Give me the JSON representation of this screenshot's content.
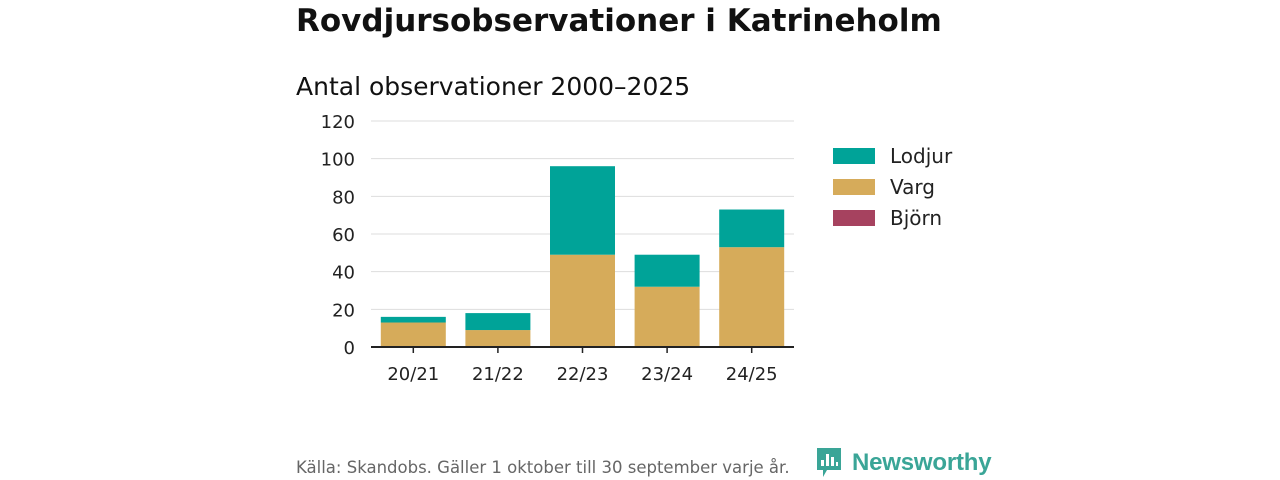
{
  "header": {
    "title": "Rovdjursobservationer i Katrineholm",
    "subtitle": "Antal observationer 2000–2025"
  },
  "footer": {
    "source": "Källa: Skandobs. Gäller 1 oktober till 30 september varje år.",
    "logo_text": "Newsworthy",
    "logo_icon": "bar-chart-icon",
    "logo_color": "#3aa597"
  },
  "chart_data": {
    "type": "bar",
    "stacked": true,
    "title": "Antal observationer 2000–2025",
    "xlabel": "",
    "ylabel": "",
    "categories": [
      "20/21",
      "21/22",
      "22/23",
      "23/24",
      "24/25"
    ],
    "series": [
      {
        "name": "Lodjur",
        "color": "#00a398",
        "values": [
          3,
          9,
          47,
          17,
          20
        ]
      },
      {
        "name": "Varg",
        "color": "#d6ab5a",
        "values": [
          13,
          9,
          49,
          32,
          53
        ]
      },
      {
        "name": "Björn",
        "color": "#a6425f",
        "values": [
          0,
          0,
          0,
          0,
          0
        ]
      }
    ],
    "ylim": [
      0,
      120
    ],
    "yticks": [
      0,
      20,
      40,
      60,
      80,
      100,
      120
    ],
    "grid": true,
    "legend_position": "right"
  }
}
